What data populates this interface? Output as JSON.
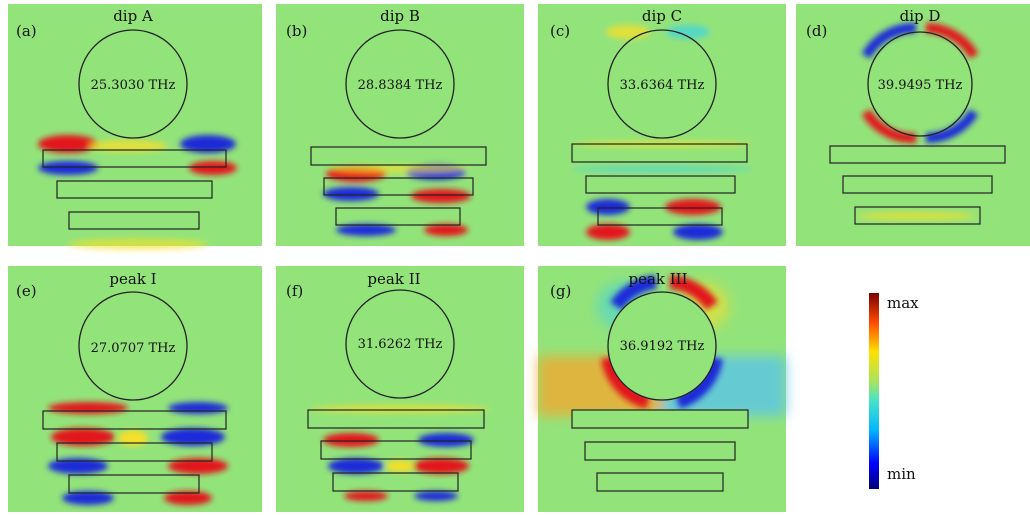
{
  "panels": [
    {
      "letter": "(a)",
      "title": "dip A",
      "freq": "25.3030 THz"
    },
    {
      "letter": "(b)",
      "title": "dip B",
      "freq": "28.8384 THz"
    },
    {
      "letter": "(c)",
      "title": "dip C",
      "freq": "33.6364 THz"
    },
    {
      "letter": "(d)",
      "title": "dip D",
      "freq": "39.9495 THz"
    },
    {
      "letter": "(e)",
      "title": "peak I",
      "freq": "27.0707 THz"
    },
    {
      "letter": "(f)",
      "title": "peak II",
      "freq": "31.6262 THz"
    },
    {
      "letter": "(g)",
      "title": "peak III",
      "freq": "36.9192 THz"
    }
  ],
  "colorbar": {
    "max_label": "max",
    "min_label": "min"
  },
  "colors": {
    "background": "#93e37b",
    "red": "#c8141a",
    "blue": "#1a2bd8",
    "cyan": "#49d4d6",
    "yellow": "#f5df2a"
  }
}
